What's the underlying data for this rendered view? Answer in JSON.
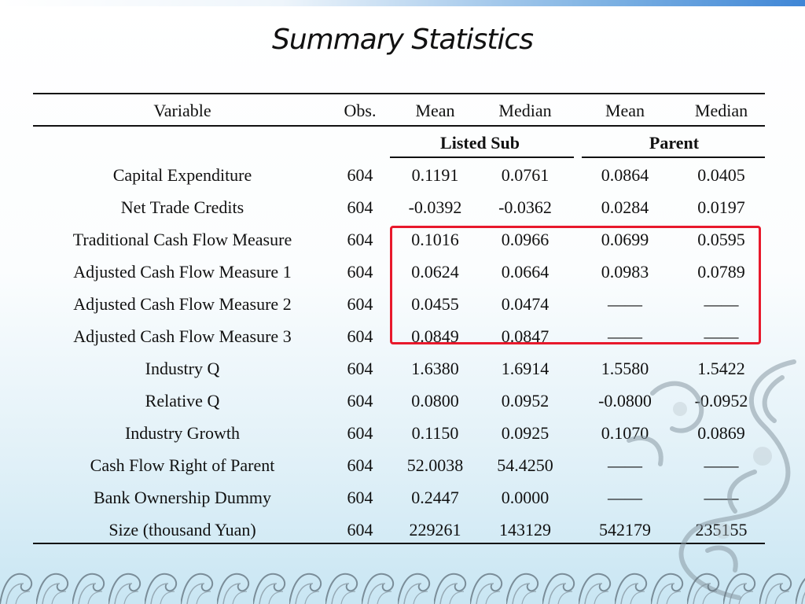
{
  "title": "Summary Statistics",
  "header": {
    "variable": "Variable",
    "obs": "Obs.",
    "mean1": "Mean",
    "median1": "Median",
    "mean2": "Mean",
    "median2": "Median"
  },
  "groups": {
    "listed_sub": "Listed Sub",
    "parent": "Parent"
  },
  "rows": [
    [
      "Capital Expenditure",
      "604",
      "0.1191",
      "0.0761",
      "0.0864",
      "0.0405"
    ],
    [
      "Net Trade Credits",
      "604",
      "-0.0392",
      "-0.0362",
      "0.0284",
      "0.0197"
    ],
    [
      "Traditional Cash Flow Measure",
      "604",
      "0.1016",
      "0.0966",
      "0.0699",
      "0.0595"
    ],
    [
      "Adjusted Cash Flow Measure 1",
      "604",
      "0.0624",
      "0.0664",
      "0.0983",
      "0.0789"
    ],
    [
      "Adjusted Cash Flow Measure 2",
      "604",
      "0.0455",
      "0.0474",
      "——",
      "——"
    ],
    [
      "Adjusted Cash Flow Measure 3",
      "604",
      "0.0849",
      "0.0847",
      "——",
      "——"
    ],
    [
      "Industry Q",
      "604",
      "1.6380",
      "1.6914",
      "1.5580",
      "1.5422"
    ],
    [
      "Relative Q",
      "604",
      "0.0800",
      "0.0952",
      "-0.0800",
      "-0.0952"
    ],
    [
      "Industry Growth",
      "604",
      "0.1150",
      "0.0925",
      "0.1070",
      "0.0869"
    ],
    [
      "Cash Flow Right of Parent",
      "604",
      "52.0038",
      "54.4250",
      "——",
      "——"
    ],
    [
      "Bank Ownership Dummy",
      "604",
      "0.2447",
      "0.0000",
      "——",
      "——"
    ],
    [
      "Size (thousand Yuan)",
      "604",
      "229261",
      "143129",
      "542179",
      "235155"
    ]
  ],
  "colors": {
    "highlight": "#e8192c",
    "accent": "#3f86d6"
  }
}
